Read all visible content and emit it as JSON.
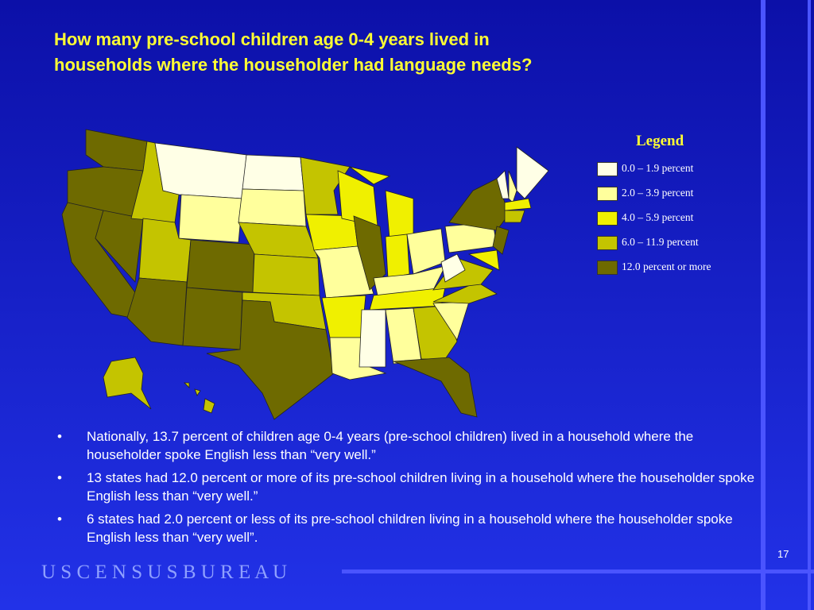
{
  "title": [
    "How many pre-school children age 0-4 years lived in",
    "households where the householder had language needs?"
  ],
  "legend": {
    "title": "Legend",
    "items": [
      {
        "label": "0.0 – 1.9 percent",
        "color": "#ffffe6"
      },
      {
        "label": "2.0 – 3.9 percent",
        "color": "#ffff9c"
      },
      {
        "label": "4.0 – 5.9 percent",
        "color": "#f0f000"
      },
      {
        "label": "6.0 – 11.9 percent",
        "color": "#c4c400"
      },
      {
        "label": "12.0 percent or more",
        "color": "#6e6a00"
      }
    ]
  },
  "bullets": [
    "Nationally, 13.7 percent of children age 0-4 years (pre-school children) lived in a household where the householder spoke English less than “very well.”",
    "13 states had 12.0 percent or more of its pre-school children living in a household where the householder spoke English less than “very well.”",
    "6 states had 2.0 percent or less of its pre-school children living in a household where the householder spoke English less than “very well”."
  ],
  "page_number": "17",
  "footer": "U S C E N S U S B U R E A U"
}
